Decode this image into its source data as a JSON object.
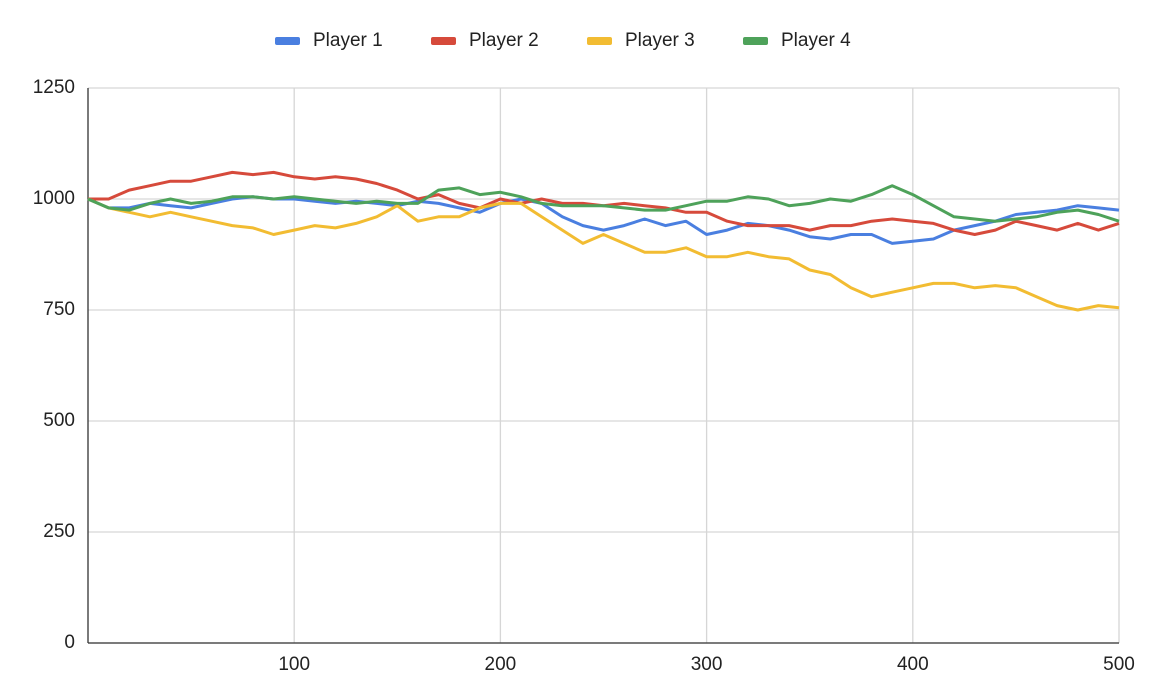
{
  "chart_data": {
    "type": "line",
    "x": [
      0,
      10,
      20,
      30,
      40,
      50,
      60,
      70,
      80,
      90,
      100,
      110,
      120,
      130,
      140,
      150,
      160,
      170,
      180,
      190,
      200,
      210,
      220,
      230,
      240,
      250,
      260,
      270,
      280,
      290,
      300,
      310,
      320,
      330,
      340,
      350,
      360,
      370,
      380,
      390,
      400,
      410,
      420,
      430,
      440,
      450,
      460,
      470,
      480,
      490,
      500
    ],
    "series": [
      {
        "name": "Player 1",
        "color": "#4a7fe0",
        "values": [
          1000,
          980,
          980,
          990,
          985,
          980,
          990,
          1000,
          1005,
          1000,
          1000,
          995,
          990,
          995,
          990,
          985,
          995,
          990,
          980,
          970,
          990,
          1000,
          990,
          960,
          940,
          930,
          940,
          955,
          940,
          950,
          920,
          930,
          945,
          940,
          930,
          915,
          910,
          920,
          920,
          900,
          905,
          910,
          930,
          940,
          950,
          965,
          970,
          975,
          985,
          980,
          975
        ]
      },
      {
        "name": "Player 2",
        "color": "#d64a3b",
        "values": [
          1000,
          1000,
          1020,
          1030,
          1040,
          1040,
          1050,
          1060,
          1055,
          1060,
          1050,
          1045,
          1050,
          1045,
          1035,
          1020,
          1000,
          1010,
          990,
          980,
          1000,
          990,
          1000,
          990,
          990,
          985,
          990,
          985,
          980,
          970,
          970,
          950,
          940,
          940,
          940,
          930,
          940,
          940,
          950,
          955,
          950,
          945,
          930,
          920,
          930,
          950,
          940,
          930,
          945,
          930,
          945
        ]
      },
      {
        "name": "Player 3",
        "color": "#f2bc32",
        "values": [
          1000,
          980,
          970,
          960,
          970,
          960,
          950,
          940,
          935,
          920,
          930,
          940,
          935,
          945,
          960,
          985,
          950,
          960,
          960,
          980,
          990,
          990,
          960,
          930,
          900,
          920,
          900,
          880,
          880,
          890,
          870,
          870,
          880,
          870,
          865,
          840,
          830,
          800,
          780,
          790,
          800,
          810,
          810,
          800,
          805,
          800,
          780,
          760,
          750,
          760,
          755
        ]
      },
      {
        "name": "Player 4",
        "color": "#4ea25a",
        "values": [
          1000,
          980,
          975,
          990,
          1000,
          990,
          995,
          1005,
          1005,
          1000,
          1005,
          1000,
          995,
          990,
          995,
          990,
          990,
          1020,
          1025,
          1010,
          1015,
          1005,
          990,
          985,
          985,
          985,
          980,
          975,
          975,
          985,
          995,
          995,
          1005,
          1000,
          985,
          990,
          1000,
          995,
          1010,
          1030,
          1010,
          985,
          960,
          955,
          950,
          955,
          960,
          970,
          975,
          965,
          950
        ]
      }
    ],
    "xlim": [
      0,
      500
    ],
    "xticks": [
      100,
      200,
      300,
      400,
      500
    ],
    "ylim": [
      0,
      1250
    ],
    "yticks": [
      0,
      250,
      500,
      750,
      1000,
      1250
    ],
    "grid": true,
    "legend": "top"
  }
}
